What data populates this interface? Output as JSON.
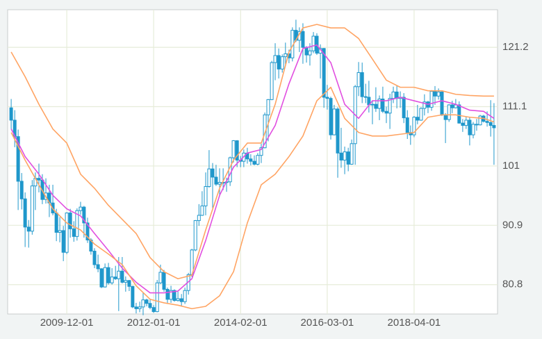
{
  "chart_data": {
    "type": "candlestick",
    "x": [
      "2008-08-01",
      "2008-09-01",
      "2008-10-01",
      "2008-11-01",
      "2008-12-01",
      "2009-01-01",
      "2009-02-01",
      "2009-03-01",
      "2009-04-01",
      "2009-05-01",
      "2009-06-01",
      "2009-07-01",
      "2009-08-01",
      "2009-09-01",
      "2009-10-01",
      "2009-11-01",
      "2009-12-01",
      "2010-01-01",
      "2010-02-01",
      "2010-03-01",
      "2010-04-01",
      "2010-05-01",
      "2010-06-01",
      "2010-07-01",
      "2010-08-01",
      "2010-09-01",
      "2010-10-01",
      "2010-11-01",
      "2010-12-01",
      "2011-01-01",
      "2011-02-01",
      "2011-03-01",
      "2011-04-01",
      "2011-05-01",
      "2011-06-01",
      "2011-07-01",
      "2011-08-01",
      "2011-09-01",
      "2011-10-01",
      "2011-11-01",
      "2011-12-01",
      "2012-01-01",
      "2012-02-01",
      "2012-03-01",
      "2012-04-01",
      "2012-05-01",
      "2012-06-01",
      "2012-07-01",
      "2012-08-01",
      "2012-09-01",
      "2012-10-01",
      "2012-11-01",
      "2012-12-01",
      "2013-01-01",
      "2013-02-01",
      "2013-03-01",
      "2013-04-01",
      "2013-05-01",
      "2013-06-01",
      "2013-07-01",
      "2013-08-01",
      "2013-09-01",
      "2013-10-01",
      "2013-11-01",
      "2013-12-01",
      "2014-01-01",
      "2014-02-01",
      "2014-03-01",
      "2014-04-01",
      "2014-05-01",
      "2014-06-01",
      "2014-07-01",
      "2014-08-01",
      "2014-09-01",
      "2014-10-01",
      "2014-11-01",
      "2014-12-01",
      "2015-01-01",
      "2015-02-01",
      "2015-03-01",
      "2015-04-01",
      "2015-05-01",
      "2015-06-01",
      "2015-07-01",
      "2015-08-01",
      "2015-09-01",
      "2015-10-01",
      "2015-11-01",
      "2015-12-01",
      "2016-01-01",
      "2016-02-01",
      "2016-03-01",
      "2016-04-01",
      "2016-05-01",
      "2016-06-01",
      "2016-07-01",
      "2016-08-01",
      "2016-09-01",
      "2016-10-01",
      "2016-11-01",
      "2016-12-01",
      "2017-01-01",
      "2017-02-01",
      "2017-03-01",
      "2017-04-01",
      "2017-05-01",
      "2017-06-01",
      "2017-07-01",
      "2017-08-01",
      "2017-09-01",
      "2017-10-01",
      "2017-11-01",
      "2017-12-01",
      "2018-01-01",
      "2018-02-01",
      "2018-03-01",
      "2018-04-01",
      "2018-05-01",
      "2018-06-01",
      "2018-07-01",
      "2018-08-01",
      "2018-09-01",
      "2018-10-01",
      "2018-11-01",
      "2018-12-01",
      "2019-01-01",
      "2019-02-01",
      "2019-03-01",
      "2019-04-01",
      "2019-05-01",
      "2019-06-01",
      "2019-07-01",
      "2019-08-01",
      "2019-09-01",
      "2019-10-01",
      "2019-11-01",
      "2019-12-01",
      "2020-01-01",
      "2020-02-01",
      "2020-03-01"
    ],
    "open": [
      110.9,
      108.8,
      106.0,
      98.4,
      95.4,
      90.6,
      89.9,
      97.6,
      98.9,
      98.6,
      95.3,
      96.4,
      94.7,
      93.0,
      89.7,
      90.0,
      86.3,
      93.0,
      90.3,
      89.0,
      93.4,
      94.0,
      91.3,
      88.4,
      86.5,
      84.2,
      83.5,
      80.4,
      83.7,
      81.1,
      82.1,
      81.8,
      83.1,
      81.2,
      81.5,
      80.5,
      77.0,
      76.7,
      77.0,
      78.2,
      77.6,
      76.9,
      76.2,
      81.1,
      82.9,
      80.0,
      78.3,
      79.8,
      78.1,
      78.4,
      77.9,
      79.8,
      82.5,
      86.7,
      91.7,
      92.6,
      94.2,
      97.5,
      100.5,
      99.1,
      97.9,
      98.2,
      98.2,
      98.3,
      102.4,
      105.3,
      102.0,
      101.8,
      103.2,
      102.2,
      101.8,
      101.3,
      102.8,
      104.1,
      109.7,
      112.3,
      118.6,
      119.8,
      117.5,
      119.6,
      120.1,
      119.4,
      124.1,
      122.4,
      123.9,
      121.2,
      119.9,
      120.6,
      123.1,
      120.2,
      121.0,
      112.7,
      112.5,
      106.3,
      110.7,
      103.2,
      102.0,
      103.4,
      101.3,
      104.8,
      114.5,
      116.9,
      112.8,
      112.7,
      111.4,
      111.5,
      110.8,
      112.4,
      110.3,
      110.0,
      112.5,
      113.6,
      112.5,
      112.7,
      109.2,
      106.7,
      106.3,
      109.3,
      108.8,
      110.8,
      111.9,
      111.0,
      113.7,
      112.9,
      113.6,
      109.7,
      108.9,
      111.4,
      110.9,
      111.4,
      108.3,
      107.9,
      108.8,
      106.3,
      108.1,
      108.0,
      109.5,
      108.6,
      108.4,
      107.9
    ],
    "high": [
      112.4,
      110.5,
      107.2,
      99.8,
      96.5,
      91.8,
      98.6,
      99.9,
      101.4,
      99.6,
      98.9,
      97.8,
      97.8,
      93.7,
      92.3,
      90.8,
      93.1,
      93.7,
      91.6,
      93.8,
      94.9,
      94.2,
      92.2,
      88.7,
      87.0,
      85.9,
      83.6,
      84.4,
      84.5,
      83.6,
      84.0,
      85.5,
      85.5,
      82.2,
      81.6,
      80.6,
      77.7,
      77.9,
      79.5,
      78.4,
      78.3,
      77.3,
      81.6,
      84.2,
      83.3,
      80.3,
      80.6,
      80.0,
      79.6,
      79.2,
      80.3,
      82.8,
      86.9,
      91.8,
      94.5,
      96.7,
      99.9,
      103.7,
      101.5,
      101.2,
      100.6,
      100.6,
      99.0,
      102.6,
      105.4,
      105.4,
      102.7,
      103.8,
      104.1,
      103.0,
      102.8,
      103.2,
      104.8,
      110.1,
      112.4,
      118.9,
      121.9,
      121.0,
      120.0,
      122.0,
      120.8,
      124.6,
      125.9,
      124.6,
      125.3,
      121.4,
      121.9,
      123.8,
      123.6,
      121.7,
      121.1,
      114.8,
      112.8,
      111.4,
      111.0,
      107.5,
      104.3,
      104.1,
      105.5,
      114.8,
      118.7,
      118.6,
      115.0,
      115.5,
      112.2,
      114.4,
      113.0,
      114.5,
      111.1,
      113.3,
      114.5,
      114.7,
      113.7,
      113.4,
      110.5,
      107.9,
      109.5,
      111.4,
      111.0,
      113.2,
      112.1,
      113.9,
      114.6,
      114.2,
      113.8,
      110.0,
      111.5,
      112.1,
      112.4,
      112.0,
      109.0,
      109.4,
      109.3,
      108.5,
      109.0,
      109.7,
      109.7,
      110.3,
      112.2,
      111.7
    ],
    "low": [
      107.3,
      104.2,
      93.5,
      93.6,
      87.2,
      87.1,
      89.3,
      93.5,
      96.5,
      94.5,
      94.6,
      92.3,
      92.6,
      88.2,
      88.0,
      84.8,
      86.0,
      88.8,
      88.1,
      88.3,
      92.7,
      88.8,
      87.9,
      85.9,
      83.6,
      82.9,
      80.2,
      80.3,
      80.8,
      80.8,
      81.6,
      76.3,
      81.0,
      79.6,
      79.7,
      76.8,
      75.9,
      76.1,
      75.6,
      77.1,
      76.6,
      76.0,
      76.1,
      80.9,
      79.6,
      77.7,
      77.7,
      77.9,
      77.9,
      77.1,
      77.5,
      79.1,
      82.1,
      86.5,
      90.8,
      92.5,
      92.6,
      97.3,
      93.8,
      97.6,
      95.8,
      96.9,
      96.6,
      97.6,
      101.6,
      100.8,
      100.8,
      100.8,
      101.4,
      101.1,
      101.1,
      101.1,
      101.5,
      104.0,
      105.2,
      112.2,
      115.6,
      115.9,
      116.9,
      118.3,
      118.5,
      118.8,
      122.1,
      120.4,
      118.4,
      118.6,
      118.1,
      120.2,
      119.9,
      115.9,
      110.9,
      110.6,
      105.5,
      106.2,
      99.0,
      100.7,
      99.6,
      100.1,
      101.2,
      101.2,
      112.9,
      111.7,
      111.7,
      110.1,
      108.1,
      110.2,
      108.8,
      110.0,
      108.3,
      107.3,
      111.7,
      110.8,
      110.9,
      108.3,
      105.6,
      104.6,
      105.9,
      108.1,
      108.7,
      109.6,
      110.0,
      110.4,
      111.4,
      112.3,
      109.5,
      104.9,
      108.5,
      110.0,
      110.8,
      108.2,
      106.8,
      107.3,
      104.5,
      105.7,
      107.0,
      107.9,
      108.4,
      107.7,
      106.0,
      101.2
    ],
    "close": [
      108.8,
      106.0,
      98.4,
      95.4,
      90.6,
      89.9,
      97.6,
      98.9,
      98.6,
      95.3,
      96.4,
      94.7,
      93.0,
      89.7,
      90.0,
      86.3,
      93.0,
      90.3,
      89.0,
      93.4,
      94.0,
      91.3,
      88.4,
      86.5,
      84.2,
      83.5,
      80.4,
      83.7,
      81.1,
      82.1,
      81.8,
      83.1,
      81.2,
      81.5,
      80.5,
      77.0,
      76.7,
      77.0,
      78.2,
      77.6,
      76.9,
      76.2,
      81.1,
      82.9,
      80.0,
      78.3,
      79.8,
      78.1,
      78.4,
      77.9,
      79.8,
      82.5,
      86.7,
      91.7,
      92.6,
      94.2,
      97.5,
      100.5,
      99.1,
      97.9,
      98.2,
      98.2,
      98.3,
      102.4,
      105.3,
      102.0,
      101.8,
      103.2,
      102.2,
      101.8,
      101.3,
      102.8,
      104.1,
      109.7,
      112.3,
      118.6,
      119.8,
      117.5,
      119.6,
      120.1,
      119.4,
      124.1,
      122.4,
      123.9,
      121.2,
      119.9,
      120.6,
      123.1,
      120.2,
      121.0,
      112.7,
      112.5,
      106.3,
      110.7,
      103.2,
      102.0,
      103.4,
      101.3,
      104.8,
      114.5,
      116.9,
      112.8,
      112.7,
      111.4,
      111.5,
      110.8,
      112.4,
      110.3,
      110.0,
      112.5,
      113.6,
      112.5,
      112.7,
      109.2,
      106.7,
      106.3,
      109.3,
      108.8,
      110.8,
      111.9,
      111.0,
      113.7,
      112.9,
      113.6,
      109.7,
      108.9,
      111.4,
      110.9,
      111.4,
      108.3,
      107.9,
      108.8,
      106.3,
      108.1,
      108.0,
      109.5,
      108.6,
      108.4,
      107.9,
      107.5
    ],
    "color": "#1f97cb",
    "series": [
      {
        "color": "#ffa463",
        "x": [
          "2008-08-01",
          "2008-12-01",
          "2009-04-01",
          "2009-08-01",
          "2009-12-01",
          "2010-04-01",
          "2010-08-01",
          "2010-12-01",
          "2011-04-01",
          "2011-08-01",
          "2011-12-01",
          "2012-04-01",
          "2012-08-01",
          "2012-12-01",
          "2013-04-01",
          "2013-08-01",
          "2013-12-01",
          "2014-04-01",
          "2014-08-01",
          "2014-12-01",
          "2015-04-01",
          "2015-08-01",
          "2015-12-01",
          "2016-04-01",
          "2016-08-01",
          "2016-12-01",
          "2017-04-01",
          "2017-08-01",
          "2017-12-01",
          "2018-04-01",
          "2018-08-01",
          "2018-12-01",
          "2019-04-01",
          "2019-08-01",
          "2019-12-01",
          "2020-03-01"
        ],
        "values": [
          120.4,
          116.2,
          111.5,
          107.3,
          104.9,
          99.6,
          97.2,
          94.3,
          91.9,
          89.5,
          85.4,
          83.0,
          81.8,
          82.4,
          90.1,
          97.2,
          102.0,
          104.9,
          104.9,
          111.5,
          120.4,
          124.5,
          125.1,
          124.5,
          124.5,
          122.7,
          119.2,
          115.6,
          114.4,
          114.4,
          113.8,
          113.8,
          113.2,
          113.0,
          112.9,
          112.9
        ]
      },
      {
        "color": "#e14fe0",
        "x": [
          "2008-08-01",
          "2008-12-01",
          "2009-04-01",
          "2009-08-01",
          "2009-12-01",
          "2010-04-01",
          "2010-08-01",
          "2010-12-01",
          "2011-04-01",
          "2011-08-01",
          "2011-12-01",
          "2012-04-01",
          "2012-08-01",
          "2012-12-01",
          "2013-04-01",
          "2013-08-01",
          "2013-12-01",
          "2014-04-01",
          "2014-08-01",
          "2014-12-01",
          "2015-04-01",
          "2015-08-01",
          "2015-12-01",
          "2016-04-01",
          "2016-08-01",
          "2016-12-01",
          "2017-04-01",
          "2017-08-01",
          "2017-12-01",
          "2018-04-01",
          "2018-08-01",
          "2018-12-01",
          "2019-04-01",
          "2019-08-01",
          "2019-12-01",
          "2020-03-01"
        ],
        "values": [
          107.3,
          102.6,
          99.6,
          96.0,
          93.7,
          92.5,
          89.5,
          86.6,
          83.6,
          81.2,
          79.4,
          79.4,
          79.7,
          81.8,
          88.3,
          96.0,
          100.8,
          103.2,
          103.8,
          107.9,
          115.0,
          121.0,
          121.6,
          118.6,
          111.5,
          109.1,
          112.1,
          112.1,
          112.7,
          112.1,
          111.5,
          112.1,
          111.5,
          110.5,
          110.3,
          109.1
        ]
      },
      {
        "color": "#ffa463",
        "x": [
          "2008-08-01",
          "2008-12-01",
          "2009-04-01",
          "2009-08-01",
          "2009-12-01",
          "2010-04-01",
          "2010-08-01",
          "2010-12-01",
          "2011-04-01",
          "2011-08-01",
          "2011-12-01",
          "2012-04-01",
          "2012-08-01",
          "2012-12-01",
          "2013-04-01",
          "2013-08-01",
          "2013-12-01",
          "2014-04-01",
          "2014-08-01",
          "2014-12-01",
          "2015-04-01",
          "2015-08-01",
          "2015-12-01",
          "2016-04-01",
          "2016-08-01",
          "2016-12-01",
          "2017-04-01",
          "2017-08-01",
          "2017-12-01",
          "2018-04-01",
          "2018-08-01",
          "2018-12-01",
          "2019-04-01",
          "2019-08-01",
          "2019-12-01",
          "2020-03-01"
        ],
        "values": [
          106.7,
          102.0,
          97.8,
          93.7,
          91.3,
          90.1,
          87.7,
          86.0,
          84.2,
          80.6,
          78.3,
          77.7,
          77.3,
          76.7,
          77.1,
          78.9,
          83.0,
          91.3,
          97.8,
          99.6,
          102.6,
          106.1,
          112.1,
          114.4,
          109.1,
          106.7,
          106.1,
          106.1,
          106.4,
          106.7,
          109.3,
          109.7,
          109.7,
          109.3,
          109.1,
          108.5
        ]
      }
    ],
    "xlim": [
      "2008-07-01",
      "2020-04-01"
    ],
    "ylim": [
      75.8,
      127.6
    ],
    "xticks": [
      "2009-12-01",
      "2012-01-01",
      "2014-02-01",
      "2016-03-01",
      "2018-04-01"
    ],
    "yticks": [
      80.8,
      90.9,
      101,
      111.1,
      121.2
    ],
    "grid": true
  }
}
